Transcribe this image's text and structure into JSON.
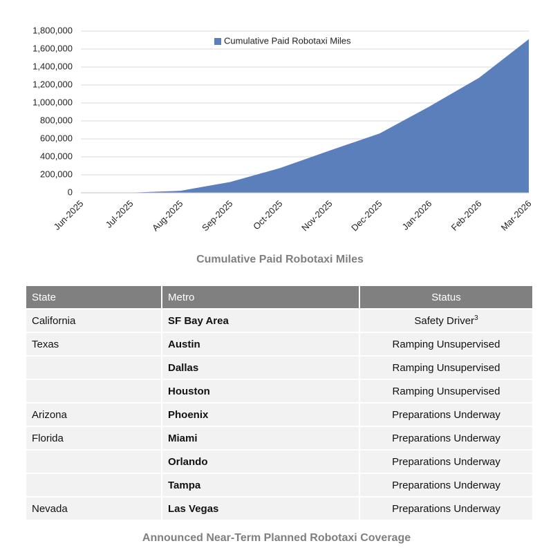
{
  "chart_data": {
    "type": "area",
    "title": "Cumulative Paid Robotaxi Miles",
    "categories": [
      "Jun-2025",
      "Jul-2025",
      "Aug-2025",
      "Sep-2025",
      "Oct-2025",
      "Nov-2025",
      "Dec-2025",
      "Jan-2026",
      "Feb-2026",
      "Mar-2026"
    ],
    "series": [
      {
        "name": "Cumulative Paid Robotaxi Miles",
        "color": "#5b7fbb",
        "values": [
          0,
          2000,
          22000,
          120000,
          275000,
          470000,
          660000,
          960000,
          1280000,
          1710000
        ]
      }
    ],
    "ylim": [
      0,
      1800000
    ],
    "yticks": [
      0,
      {
        "value": 200000,
        "label": "200,000"
      },
      {
        "value": 400000,
        "label": "400,000"
      },
      {
        "value": 600000,
        "label": "600,000"
      },
      {
        "value": 800000,
        "label": "800,000"
      },
      {
        "value": 1000000,
        "label": "1,000,000"
      },
      {
        "value": 1200000,
        "label": "1,200,000"
      },
      {
        "value": 1400000,
        "label": "1,400,000"
      },
      {
        "value": 1600000,
        "label": "1,600,000"
      },
      {
        "value": 1800000,
        "label": "1,800,000"
      }
    ],
    "grid": true,
    "legend": "top"
  },
  "table": {
    "caption": "Announced Near-Term Planned Robotaxi Coverage",
    "columns": [
      "State",
      "Metro",
      "Status"
    ],
    "rows": [
      {
        "state": "California",
        "metro": "SF Bay Area",
        "status": "Safety Driver",
        "status_note": "3"
      },
      {
        "state": "Texas",
        "metro": "Austin",
        "status": "Ramping Unsupervised"
      },
      {
        "metro": "Dallas",
        "status": "Ramping Unsupervised"
      },
      {
        "metro": "Houston",
        "status": "Ramping Unsupervised"
      },
      {
        "state": "Arizona",
        "metro": "Phoenix",
        "status": "Preparations Underway"
      },
      {
        "state": "Florida",
        "metro": "Miami",
        "status": "Preparations Underway"
      },
      {
        "metro": "Orlando",
        "status": "Preparations Underway"
      },
      {
        "metro": "Tampa",
        "status": "Preparations Underway"
      },
      {
        "state": "Nevada",
        "metro": "Las Vegas",
        "status": "Preparations Underway"
      }
    ]
  }
}
